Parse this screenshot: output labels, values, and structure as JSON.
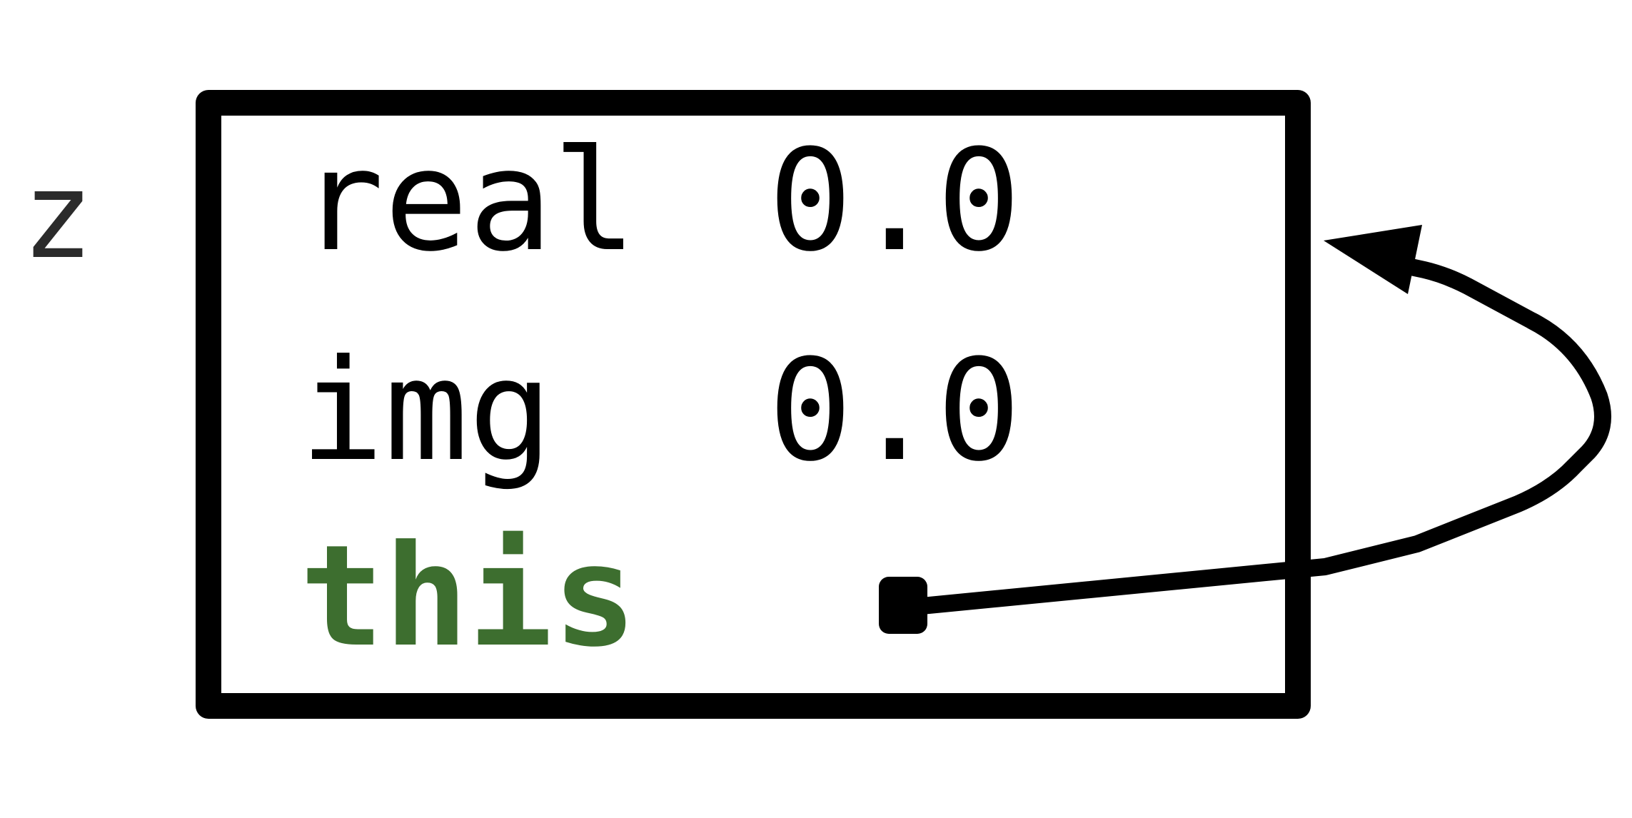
{
  "variable": {
    "name": "z"
  },
  "object": {
    "fields": [
      {
        "name": "real",
        "value": "0.0"
      },
      {
        "name": "img",
        "value": "0.0"
      },
      {
        "name": "this",
        "value": ""
      }
    ]
  },
  "pointer": {
    "from": "this",
    "to": "object"
  },
  "colors": {
    "stroke": "#000000",
    "keyword": "#3d6e2f",
    "variable_text": "#2b2b2b"
  }
}
